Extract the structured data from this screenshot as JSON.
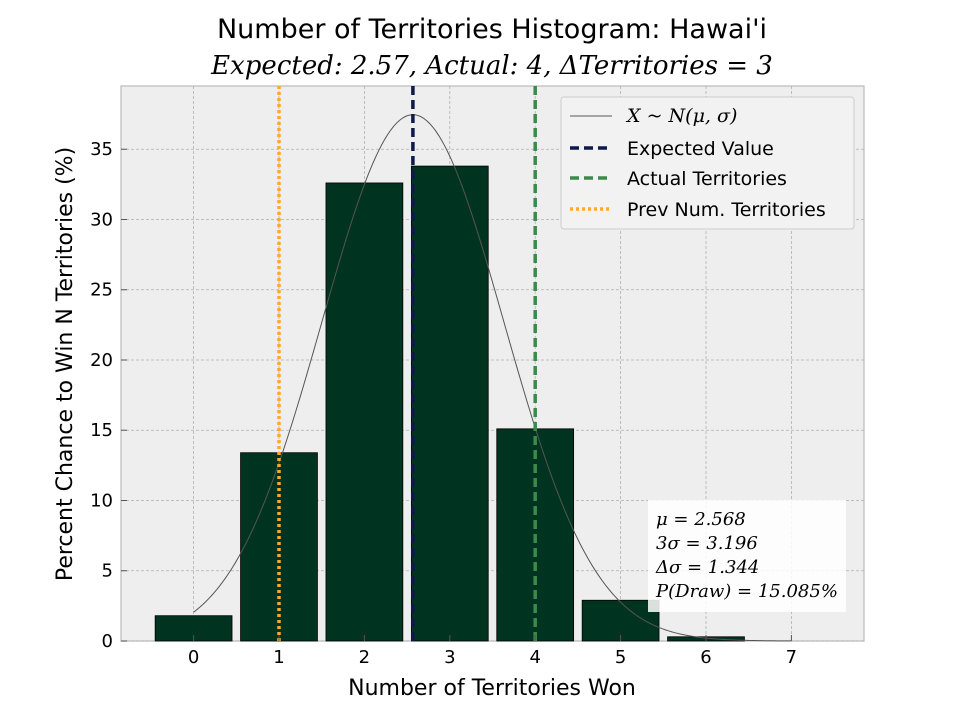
{
  "chart_data": {
    "type": "bar",
    "title": "Number of Territories Histogram: Hawai'i",
    "subtitle": "Expected: 2.57, Actual: 4, ΔTerritories = 3",
    "xlabel": "Number of Territories Won",
    "ylabel": "Percent Chance to Win N Territories (%)",
    "categories": [
      0,
      1,
      2,
      3,
      4,
      5,
      6,
      7
    ],
    "values": [
      1.8,
      13.4,
      32.6,
      33.8,
      15.1,
      2.9,
      0.3,
      0.0
    ],
    "xlim": [
      -0.85,
      7.85
    ],
    "ylim": [
      0,
      39.5
    ],
    "xticks": [
      0,
      1,
      2,
      3,
      4,
      5,
      6,
      7
    ],
    "yticks": [
      0,
      5,
      10,
      15,
      20,
      25,
      30,
      35
    ],
    "grid": true,
    "bar_color": "#003420",
    "background_color": "#eeeeee",
    "normal_curve": {
      "mu": 2.568,
      "sigma": 1.065,
      "label": "X ~ N(μ, σ)",
      "color": "#555555"
    },
    "vlines": [
      {
        "name": "Expected Value",
        "x": 2.568,
        "color": "#0d1a4a",
        "style": "dashed"
      },
      {
        "name": "Actual Territories",
        "x": 4,
        "color": "#3a8a4a",
        "style": "dashed"
      },
      {
        "name": "Prev Num. Territories",
        "x": 1,
        "color": "#ffaa22",
        "style": "dotted"
      }
    ],
    "legend_position": "upper right",
    "stats_box": [
      "μ = 2.568",
      "3σ = 3.196",
      "Δσ = 1.344",
      "P(Draw) = 15.085%"
    ],
    "stats_position": "lower right"
  }
}
